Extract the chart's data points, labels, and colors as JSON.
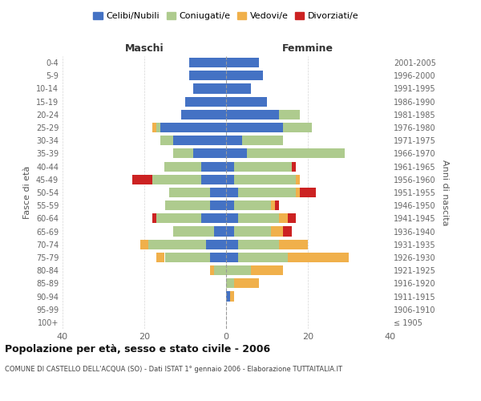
{
  "age_groups": [
    "100+",
    "95-99",
    "90-94",
    "85-89",
    "80-84",
    "75-79",
    "70-74",
    "65-69",
    "60-64",
    "55-59",
    "50-54",
    "45-49",
    "40-44",
    "35-39",
    "30-34",
    "25-29",
    "20-24",
    "15-19",
    "10-14",
    "5-9",
    "0-4"
  ],
  "birth_years": [
    "≤ 1905",
    "1906-1910",
    "1911-1915",
    "1916-1920",
    "1921-1925",
    "1926-1930",
    "1931-1935",
    "1936-1940",
    "1941-1945",
    "1946-1950",
    "1951-1955",
    "1956-1960",
    "1961-1965",
    "1966-1970",
    "1971-1975",
    "1976-1980",
    "1981-1985",
    "1986-1990",
    "1991-1995",
    "1996-2000",
    "2001-2005"
  ],
  "maschi": {
    "celibi": [
      0,
      0,
      0,
      0,
      0,
      4,
      5,
      3,
      6,
      4,
      4,
      6,
      6,
      8,
      13,
      16,
      11,
      10,
      8,
      9,
      9
    ],
    "coniugati": [
      0,
      0,
      0,
      0,
      3,
      11,
      14,
      10,
      11,
      11,
      10,
      12,
      9,
      5,
      3,
      1,
      0,
      0,
      0,
      0,
      0
    ],
    "vedovi": [
      0,
      0,
      0,
      0,
      1,
      2,
      2,
      0,
      0,
      0,
      0,
      0,
      0,
      0,
      0,
      1,
      0,
      0,
      0,
      0,
      0
    ],
    "divorziati": [
      0,
      0,
      0,
      0,
      0,
      0,
      0,
      0,
      1,
      0,
      0,
      5,
      0,
      0,
      0,
      0,
      0,
      0,
      0,
      0,
      0
    ]
  },
  "femmine": {
    "nubili": [
      0,
      0,
      1,
      0,
      0,
      3,
      3,
      2,
      3,
      2,
      3,
      2,
      2,
      5,
      4,
      14,
      13,
      10,
      6,
      9,
      8
    ],
    "coniugate": [
      0,
      0,
      0,
      2,
      6,
      12,
      10,
      9,
      10,
      9,
      14,
      15,
      14,
      24,
      10,
      7,
      5,
      0,
      0,
      0,
      0
    ],
    "vedove": [
      0,
      0,
      1,
      6,
      8,
      15,
      7,
      3,
      2,
      1,
      1,
      1,
      0,
      0,
      0,
      0,
      0,
      0,
      0,
      0,
      0
    ],
    "divorziate": [
      0,
      0,
      0,
      0,
      0,
      0,
      0,
      2,
      2,
      1,
      4,
      0,
      1,
      0,
      0,
      0,
      0,
      0,
      0,
      0,
      0
    ]
  },
  "colors": {
    "celibi_nubili": "#4472C4",
    "coniugati": "#AECB8E",
    "vedovi": "#F0B04B",
    "divorziati": "#CC2222"
  },
  "title": "Popolazione per età, sesso e stato civile - 2006",
  "subtitle": "COMUNE DI CASTELLO DELL'ACQUA (SO) - Dati ISTAT 1° gennaio 2006 - Elaborazione TUTTAITALIA.IT",
  "xlabel_left": "Maschi",
  "xlabel_right": "Femmine",
  "ylabel_left": "Fasce di età",
  "ylabel_right": "Anni di nascita",
  "xlim": 40,
  "legend_labels": [
    "Celibi/Nubili",
    "Coniugati/e",
    "Vedovi/e",
    "Divorziati/e"
  ],
  "background_color": "#ffffff",
  "grid_color": "#cccccc"
}
